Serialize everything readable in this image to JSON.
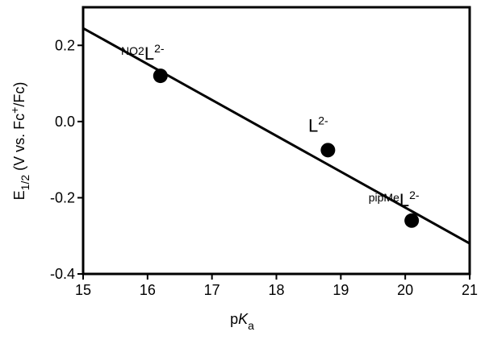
{
  "chart_data": {
    "type": "scatter",
    "x": [
      16.2,
      18.8,
      20.1
    ],
    "series": [
      {
        "color": "#000000",
        "values": [
          0.12,
          -0.075,
          -0.26
        ]
      }
    ],
    "point_labels": [
      {
        "prefix": "NO2",
        "base": "L",
        "sup": "2-"
      },
      {
        "prefix": "",
        "base": "L",
        "sup": "2-"
      },
      {
        "prefix": "pipMe",
        "base": "L",
        "sup": "2-"
      }
    ],
    "fit": {
      "x": [
        15,
        21
      ],
      "y": [
        0.245,
        -0.32
      ],
      "color": "#000000"
    },
    "x_label": {
      "main": "p",
      "italic": "K",
      "sub": "a"
    },
    "y_label": {
      "main": "E",
      "sub": "1/2",
      "text1": " (V vs. Fc",
      "sup": "+",
      "text2": "/Fc)"
    },
    "xlim": [
      15,
      21
    ],
    "xticks": [
      15,
      16,
      17,
      18,
      19,
      20,
      21
    ],
    "ylim": [
      -0.4,
      0.3
    ],
    "yticks": [
      0.2,
      {
        "value": 0,
        "label": "0.0"
      },
      -0.2,
      -0.4
    ]
  }
}
